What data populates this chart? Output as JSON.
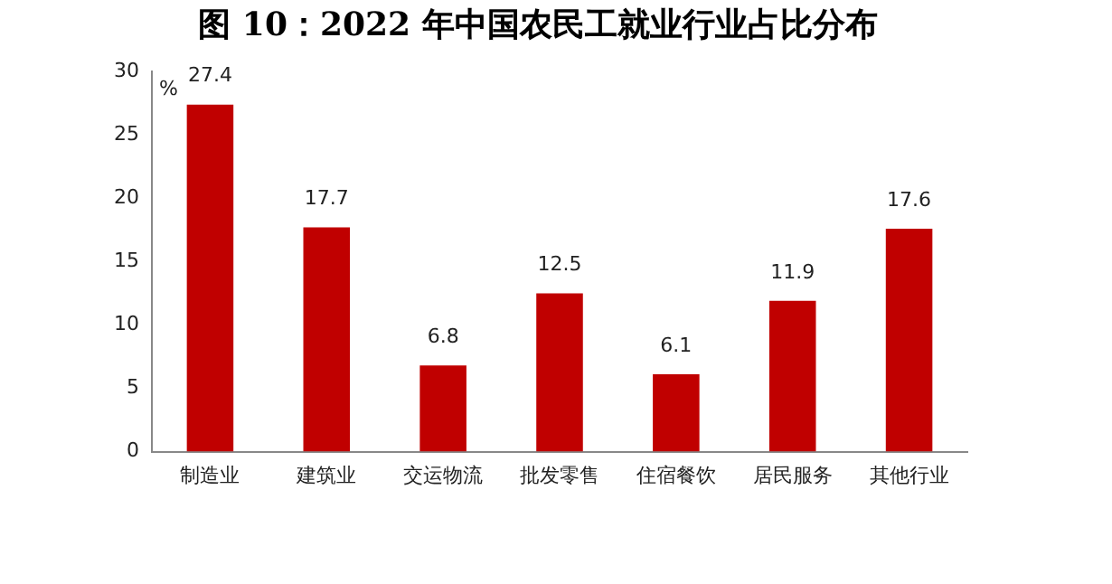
{
  "chart_data": {
    "type": "bar",
    "title": "图 10：2022 年中国农民工就业行业占比分布",
    "ylabel": "%",
    "categories": [
      "制造业",
      "建筑业",
      "交运物流",
      "批发零售",
      "住宿餐饮",
      "居民服务",
      "其他行业"
    ],
    "values": [
      27.4,
      17.7,
      6.8,
      12.5,
      6.1,
      11.9,
      17.6
    ],
    "color": "#c00000",
    "ylim": [
      0,
      30
    ],
    "yticks": [
      0,
      5,
      10,
      15,
      20,
      25,
      30
    ],
    "grid": false,
    "legend": false,
    "data_labels": true
  }
}
